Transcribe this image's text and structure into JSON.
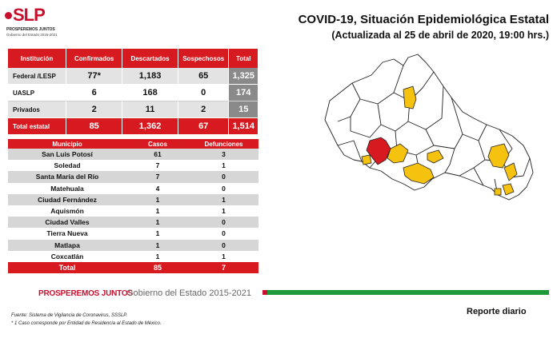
{
  "logo": {
    "mark": "SLP",
    "line1": "PROSPEREMOS JUNTOS",
    "line2": "Gobierno del Estado 2015-2021"
  },
  "header": {
    "title": "COVID-19, Situación Epidemiológica Estatal",
    "subtitle": "(Actualizada al 25 de abril de 2020, 19:00 hrs.)"
  },
  "institution_table": {
    "headers": [
      "Institución",
      "Confirmados",
      "Descartados",
      "Sospechosos",
      "Total"
    ],
    "rows": [
      {
        "institucion": "Federal /LESP",
        "confirmados": "77*",
        "descartados": "1,183",
        "sospechosos": "65",
        "total": "1,325"
      },
      {
        "institucion": "UASLP",
        "confirmados": "6",
        "descartados": "168",
        "sospechosos": "0",
        "total": "174"
      },
      {
        "institucion": "Privados",
        "confirmados": "2",
        "descartados": "11",
        "sospechosos": "2",
        "total": "15"
      }
    ],
    "total_row": {
      "institucion": "Total estatal",
      "confirmados": "85",
      "descartados": "1,362",
      "sospechosos": "67",
      "total": "1,514"
    }
  },
  "municipality_table": {
    "headers": [
      "Municipio",
      "Casos",
      "Defunciones"
    ],
    "rows": [
      {
        "municipio": "San Luis Potosí",
        "casos": "61",
        "defunciones": "3"
      },
      {
        "municipio": "Soledad",
        "casos": "7",
        "defunciones": "1"
      },
      {
        "municipio": "Santa María del Río",
        "casos": "7",
        "defunciones": "0"
      },
      {
        "municipio": "Matehuala",
        "casos": "4",
        "defunciones": "0"
      },
      {
        "municipio": "Ciudad Fernández",
        "casos": "1",
        "defunciones": "1"
      },
      {
        "municipio": "Aquismón",
        "casos": "1",
        "defunciones": "1"
      },
      {
        "municipio": "Ciudad Valles",
        "casos": "1",
        "defunciones": "0"
      },
      {
        "municipio": "Tierra Nueva",
        "casos": "1",
        "defunciones": "0"
      },
      {
        "municipio": "Matlapa",
        "casos": "1",
        "defunciones": "0"
      },
      {
        "municipio": "Coxcatlán",
        "casos": "1",
        "defunciones": "1"
      }
    ],
    "total_row": {
      "municipio": "Total",
      "casos": "85",
      "defunciones": "7"
    }
  },
  "footer": {
    "brand": "PROSPEREMOS JUNTOS",
    "government": "Gobierno del Estado 2015-2021",
    "source": "Fuente: Sistema de Vigilancia de Coronavirus, SSSLP.",
    "note": "* 1 Caso corresponde por Entidad de Residencia al Estado de México.",
    "report": "Reporte diario"
  },
  "colors": {
    "header_red": "#d71920",
    "row_grey": "#d6d6d6",
    "band_green": "#1e9a3a",
    "map_yellow": "#f5c20f",
    "map_red": "#d71920"
  }
}
